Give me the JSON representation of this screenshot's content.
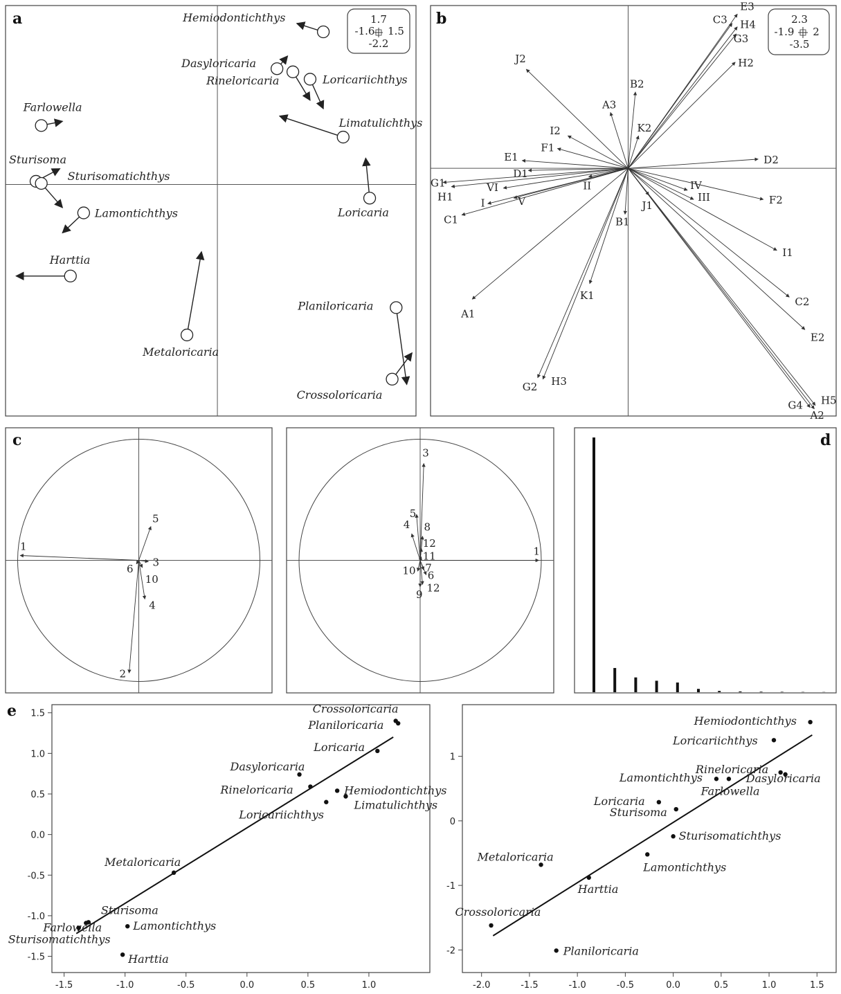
{
  "figure": {
    "panel_labels": {
      "a": "a",
      "b": "b",
      "c": "c",
      "d": "d",
      "e": "e"
    }
  },
  "chart_data": [
    {
      "id": "a",
      "type": "scatter",
      "description_kind": "biplot-arrows",
      "xlim": [
        -1.6,
        1.5
      ],
      "ylim": [
        -2.2,
        1.7
      ],
      "scale_box": {
        "top": "1.7",
        "left": "-1.6",
        "right": "1.5",
        "bottom": "-2.2"
      },
      "points": [
        {
          "name": "Hemiodontichthys",
          "x": 0.8,
          "y": 1.45,
          "ax": 0.6,
          "ay": 1.53
        },
        {
          "name": "Dasyloricaria",
          "x": 0.45,
          "y": 1.1,
          "ax": 0.53,
          "ay": 1.22
        },
        {
          "name": "Rineloricaria",
          "x": 0.57,
          "y": 1.07,
          "ax": 0.7,
          "ay": 0.8
        },
        {
          "name": "Loricariichthys",
          "x": 0.7,
          "y": 1.0,
          "ax": 0.8,
          "ay": 0.72
        },
        {
          "name": "Limatulichthys",
          "x": 0.95,
          "y": 0.45,
          "ax": 0.47,
          "ay": 0.65
        },
        {
          "name": "Loricaria",
          "x": 1.15,
          "y": -0.13,
          "ax": 1.12,
          "ay": 0.25
        },
        {
          "name": "Farlowella",
          "x": -1.33,
          "y": 0.56,
          "ax": -1.17,
          "ay": 0.6
        },
        {
          "name": "Sturisoma",
          "x": -1.37,
          "y": 0.03,
          "ax": -1.19,
          "ay": 0.15
        },
        {
          "name": "Sturisomatichthys",
          "x": -1.33,
          "y": 0.01,
          "ax": -1.17,
          "ay": -0.22
        },
        {
          "name": "Lamontichthys",
          "x": -1.01,
          "y": -0.27,
          "ax": -1.17,
          "ay": -0.46
        },
        {
          "name": "Harttia",
          "x": -1.11,
          "y": -0.87,
          "ax": -1.52,
          "ay": -0.87
        },
        {
          "name": "Metaloricaria",
          "x": -0.23,
          "y": -1.43,
          "ax": -0.12,
          "ay": -0.64
        },
        {
          "name": "Planiloricaria",
          "x": 1.35,
          "y": -1.17,
          "ax": 1.43,
          "ay": -1.9
        },
        {
          "name": "Crossoloricaria",
          "x": 1.32,
          "y": -1.85,
          "ax": 1.47,
          "ay": -1.6
        }
      ]
    },
    {
      "id": "b",
      "type": "scatter",
      "description_kind": "variable-arrows",
      "xlim": [
        -1.9,
        2
      ],
      "ylim": [
        -3.5,
        2.3
      ],
      "scale_box": {
        "top": "2.3",
        "left": "-1.9",
        "right": "2",
        "bottom": "-3.5"
      },
      "arrows": [
        {
          "label": "E3",
          "x": 1.05,
          "y": 2.18
        },
        {
          "label": "C3",
          "x": 1.0,
          "y": 2.05
        },
        {
          "label": "H4",
          "x": 1.05,
          "y": 2.0
        },
        {
          "label": "G3",
          "x": 1.04,
          "y": 1.9
        },
        {
          "label": "H2",
          "x": 1.03,
          "y": 1.5
        },
        {
          "label": "J2",
          "x": -0.98,
          "y": 1.4
        },
        {
          "label": "B2",
          "x": 0.07,
          "y": 1.08
        },
        {
          "label": "A3",
          "x": -0.17,
          "y": 0.79
        },
        {
          "label": "K2",
          "x": 0.1,
          "y": 0.46
        },
        {
          "label": "I2",
          "x": -0.58,
          "y": 0.46
        },
        {
          "label": "F1",
          "x": -0.68,
          "y": 0.28
        },
        {
          "label": "E1",
          "x": -1.02,
          "y": 0.11
        },
        {
          "label": "D1",
          "x": -0.96,
          "y": -0.03
        },
        {
          "label": "D2",
          "x": 1.25,
          "y": 0.13
        },
        {
          "label": "G1",
          "x": -1.78,
          "y": -0.2
        },
        {
          "label": "H1",
          "x": -1.7,
          "y": -0.26
        },
        {
          "label": "VI",
          "x": -1.2,
          "y": -0.28
        },
        {
          "label": "II",
          "x": -0.38,
          "y": -0.12
        },
        {
          "label": "IV",
          "x": 0.57,
          "y": -0.31
        },
        {
          "label": "III",
          "x": 0.63,
          "y": -0.44
        },
        {
          "label": "I",
          "x": -1.35,
          "y": -0.5
        },
        {
          "label": "V",
          "x": -1.1,
          "y": -0.42
        },
        {
          "label": "C1",
          "x": -1.6,
          "y": -0.66
        },
        {
          "label": "J1",
          "x": 0.2,
          "y": -0.38
        },
        {
          "label": "B1",
          "x": -0.03,
          "y": -0.65
        },
        {
          "label": "F2",
          "x": 1.3,
          "y": -0.44
        },
        {
          "label": "I1",
          "x": 1.43,
          "y": -1.16
        },
        {
          "label": "K1",
          "x": -0.37,
          "y": -1.63
        },
        {
          "label": "A1",
          "x": -1.5,
          "y": -1.85
        },
        {
          "label": "C2",
          "x": 1.55,
          "y": -1.82
        },
        {
          "label": "E2",
          "x": 1.7,
          "y": -2.28
        },
        {
          "label": "G2",
          "x": -0.87,
          "y": -2.96
        },
        {
          "label": "H3",
          "x": -0.82,
          "y": -2.98
        },
        {
          "label": "H5",
          "x": 1.8,
          "y": -3.35
        },
        {
          "label": "G4",
          "x": 1.75,
          "y": -3.38
        },
        {
          "label": "A2",
          "x": 1.79,
          "y": -3.4
        }
      ]
    },
    {
      "id": "c1",
      "type": "scatter",
      "description_kind": "correlation-circle",
      "xlim": [
        -1,
        1
      ],
      "ylim": [
        -1,
        1
      ],
      "arrows": [
        {
          "label": "1",
          "x": -0.98,
          "y": 0.04
        },
        {
          "label": "5",
          "x": 0.1,
          "y": 0.28
        },
        {
          "label": "3",
          "x": 0.08,
          "y": -0.01
        },
        {
          "label": "6",
          "x": -0.02,
          "y": -0.03
        },
        {
          "label": "10",
          "x": 0.03,
          "y": -0.06
        },
        {
          "label": "4",
          "x": 0.05,
          "y": -0.32
        },
        {
          "label": "2",
          "x": -0.08,
          "y": -0.93
        }
      ]
    },
    {
      "id": "c2",
      "type": "scatter",
      "description_kind": "correlation-circle",
      "xlim": [
        -1,
        1
      ],
      "ylim": [
        -1,
        1
      ],
      "arrows": [
        {
          "label": "1",
          "x": 0.98,
          "y": 0.0
        },
        {
          "label": "3",
          "x": 0.03,
          "y": 0.8
        },
        {
          "label": "5",
          "x": -0.03,
          "y": 0.38
        },
        {
          "label": "4",
          "x": -0.07,
          "y": 0.22
        },
        {
          "label": "8",
          "x": 0.02,
          "y": 0.2
        },
        {
          "label": "12",
          "x": 0.01,
          "y": 0.1
        },
        {
          "label": "11",
          "x": 0.01,
          "y": 0.03
        },
        {
          "label": "7",
          "x": 0.03,
          "y": -0.08
        },
        {
          "label": "10",
          "x": -0.02,
          "y": -0.09
        },
        {
          "label": "6",
          "x": 0.05,
          "y": -0.12
        },
        {
          "label": "12",
          "x": 0.02,
          "y": -0.2
        },
        {
          "label": "9",
          "x": 0.0,
          "y": -0.22
        }
      ]
    },
    {
      "id": "d",
      "type": "bar",
      "description_kind": "eigenvalues",
      "values": [
        100,
        9.5,
        5.8,
        4.5,
        3.8,
        1.3,
        0.5,
        0.3,
        0.2,
        0.15,
        0.1,
        0.08
      ]
    },
    {
      "id": "e1",
      "type": "scatter",
      "xlim": [
        -1.6,
        1.5
      ],
      "ylim": [
        -1.7,
        1.6
      ],
      "xticks": [
        "-1.5",
        "-1.0",
        "-0.5",
        "0.0",
        "0.5",
        "1.0"
      ],
      "yticks": [
        "-1.5",
        "-1.0",
        "-0.5",
        "0.0",
        "0.5",
        "1.0",
        "1.5"
      ],
      "fit_line": {
        "x1": -1.4,
        "y1": -1.22,
        "x2": 1.2,
        "y2": 1.2
      },
      "points": [
        {
          "name": "Crossoloricaria",
          "x": 1.22,
          "y": 1.4
        },
        {
          "name": "Planiloricaria",
          "x": 1.24,
          "y": 1.37
        },
        {
          "name": "Loricaria",
          "x": 1.07,
          "y": 1.03
        },
        {
          "name": "Dasyloricaria",
          "x": 0.43,
          "y": 0.74
        },
        {
          "name": "Rineloricaria",
          "x": 0.52,
          "y": 0.59
        },
        {
          "name": "Hemiodontichthys",
          "x": 0.74,
          "y": 0.54
        },
        {
          "name": "Loricariichthys",
          "x": 0.65,
          "y": 0.4
        },
        {
          "name": "Limatulichthys",
          "x": 0.81,
          "y": 0.47
        },
        {
          "name": "Metaloricaria",
          "x": -0.6,
          "y": -0.47
        },
        {
          "name": "Farlowella",
          "x": -1.32,
          "y": -1.09
        },
        {
          "name": "Sturisoma",
          "x": -1.3,
          "y": -1.08
        },
        {
          "name": "Sturisomatichthys",
          "x": -1.38,
          "y": -1.15
        },
        {
          "name": "Lamontichthys",
          "x": -0.98,
          "y": -1.13
        },
        {
          "name": "Harttia",
          "x": -1.02,
          "y": -1.48
        }
      ]
    },
    {
      "id": "e2",
      "type": "scatter",
      "xlim": [
        -2.2,
        1.7
      ],
      "ylim": [
        -2.35,
        1.8
      ],
      "xticks": [
        "-2.0",
        "-1.5",
        "-1.0",
        "-0.5",
        "0.0",
        "0.5",
        "1.0",
        "1.5"
      ],
      "yticks": [
        "-2",
        "-1",
        "0",
        "1"
      ],
      "fit_line": {
        "x1": -1.88,
        "y1": -1.78,
        "x2": 1.45,
        "y2": 1.33
      },
      "points": [
        {
          "name": "Hemiodontichthys",
          "x": 1.43,
          "y": 1.53
        },
        {
          "name": "Loricariichthys",
          "x": 1.05,
          "y": 1.25
        },
        {
          "name": "Rineloricaria",
          "x": 0.58,
          "y": 0.65
        },
        {
          "name": "Lamontichthys",
          "x": 0.45,
          "y": 0.65
        },
        {
          "name": "Dasyloricaria",
          "x": 1.12,
          "y": 0.75
        },
        {
          "name": "Farlowella",
          "x": 1.17,
          "y": 0.72
        },
        {
          "name": "Loricaria",
          "x": -0.15,
          "y": 0.29
        },
        {
          "name": "Sturisoma",
          "x": 0.03,
          "y": 0.18
        },
        {
          "name": "Sturisomatichthys",
          "x": 0.0,
          "y": -0.24
        },
        {
          "name": "Lamontichthys",
          "x": -0.27,
          "y": -0.52
        },
        {
          "name": "Metaloricaria",
          "x": -1.38,
          "y": -0.68
        },
        {
          "name": "Harttia",
          "x": -0.88,
          "y": -0.88
        },
        {
          "name": "Crossoloricaria",
          "x": -1.9,
          "y": -1.62
        },
        {
          "name": "Planiloricaria",
          "x": -1.22,
          "y": -2.01
        }
      ]
    }
  ]
}
